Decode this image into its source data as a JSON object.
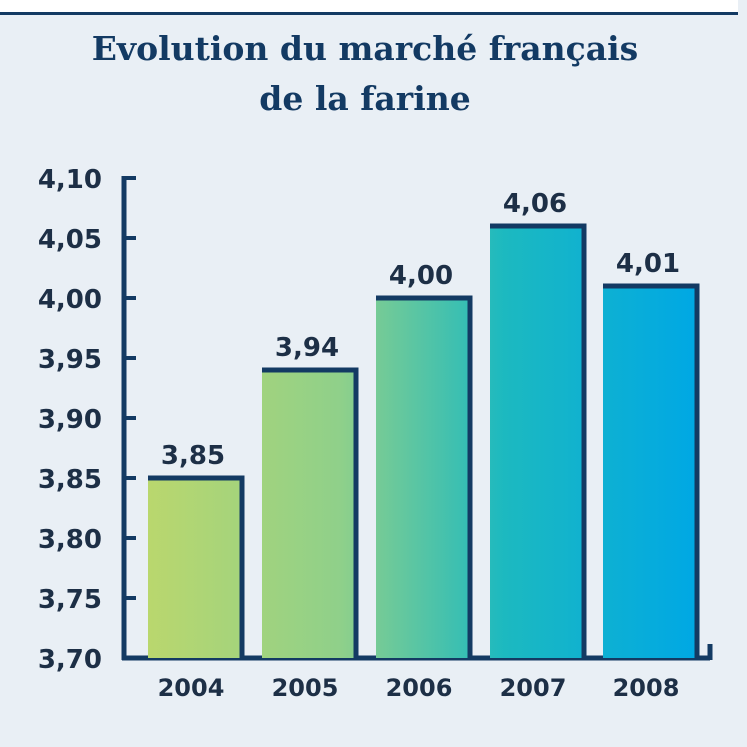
{
  "chart_data": {
    "type": "bar",
    "title": "Evolution du marché français",
    "subtitle": "de la farine",
    "xlabel": "",
    "ylabel": "",
    "categories": [
      "2004",
      "2005",
      "2006",
      "2007",
      "2008"
    ],
    "values": [
      3.85,
      3.94,
      4.0,
      4.06,
      4.01
    ],
    "value_labels": [
      "3,85",
      "3,94",
      "4,00",
      "4,06",
      "4,01"
    ],
    "ylim": [
      3.7,
      4.1
    ],
    "yticks": [
      3.7,
      3.75,
      3.8,
      3.85,
      3.9,
      3.95,
      4.0,
      4.05,
      4.1
    ],
    "ytick_labels": [
      "3,70",
      "3,75",
      "3,80",
      "3,85",
      "3,90",
      "3,95",
      "4,00",
      "4,05",
      "4,10"
    ],
    "grid": false,
    "legend": "none",
    "colors": {
      "axis": "#133a63",
      "background": "#e9eff5",
      "title": "#133a63",
      "bar_gradient_from": "#b9d76e",
      "bar_gradient_to": "#00a8e4"
    }
  }
}
